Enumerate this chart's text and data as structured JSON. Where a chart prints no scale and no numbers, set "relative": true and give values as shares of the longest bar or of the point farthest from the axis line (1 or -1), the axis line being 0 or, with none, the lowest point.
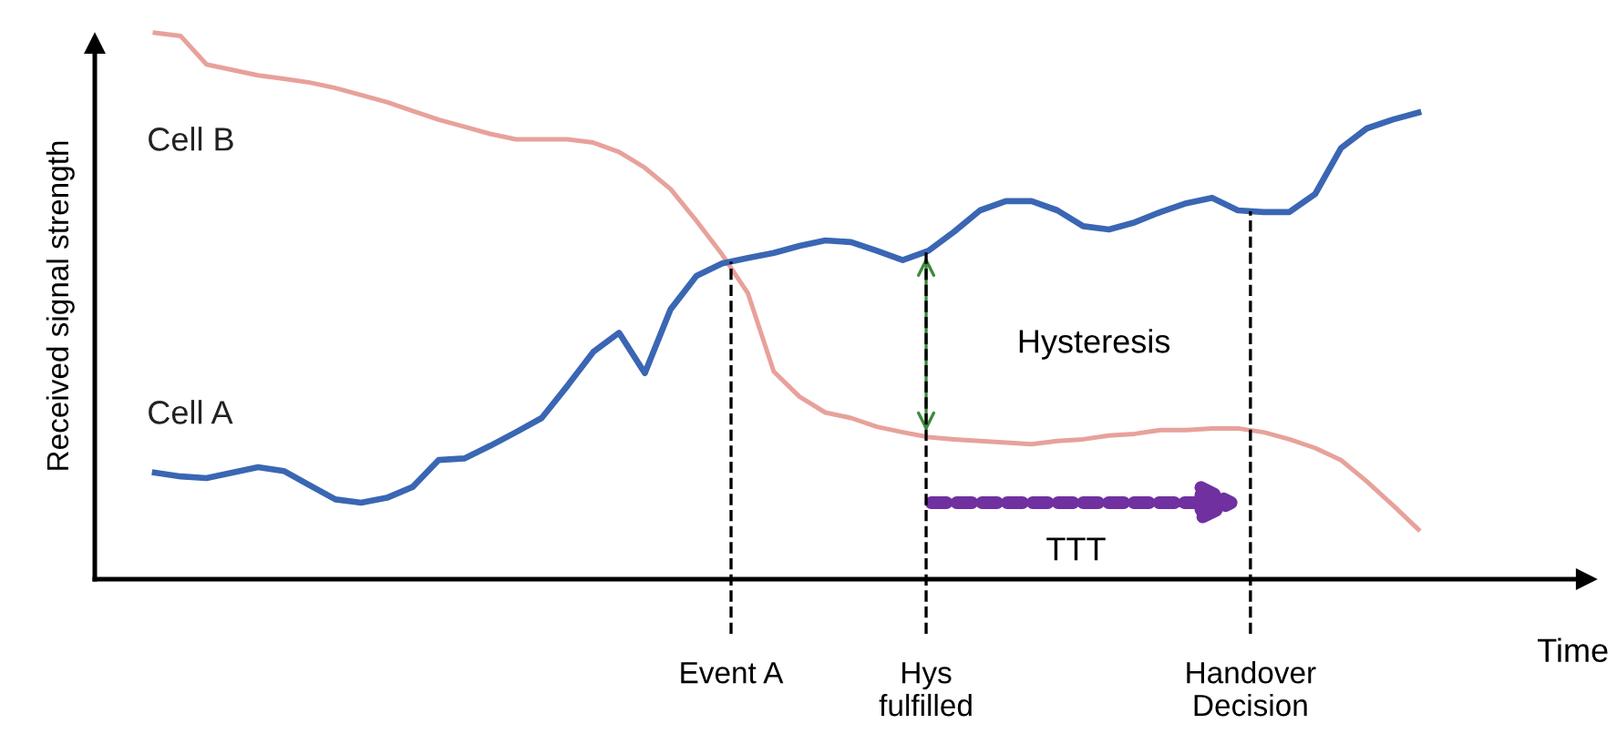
{
  "chart_data": {
    "type": "line",
    "relative": true,
    "ylabel": "Received signal strength",
    "xlabel": "Time",
    "categories": [
      null,
      null,
      null,
      null,
      null,
      null,
      null,
      null,
      null,
      null,
      null,
      null,
      null,
      null,
      null,
      null,
      null,
      null,
      null,
      null,
      null,
      null,
      null,
      null,
      null,
      null,
      null,
      null,
      null,
      null,
      null,
      null,
      null,
      null,
      null,
      null,
      null,
      null,
      null,
      null,
      null,
      null,
      null,
      null,
      null,
      null,
      null,
      null,
      null,
      null
    ],
    "line_style": "solid",
    "series": [
      {
        "name": "Cell B",
        "color": "#e8a19b",
        "values": [
          1.0,
          0.994,
          0.942,
          0.932,
          0.922,
          0.916,
          0.909,
          0.899,
          0.886,
          0.873,
          0.857,
          0.841,
          0.828,
          0.815,
          0.805,
          0.805,
          0.805,
          0.799,
          0.782,
          0.753,
          0.714,
          0.656,
          0.594,
          0.523,
          0.38,
          0.334,
          0.305,
          0.295,
          0.279,
          0.269,
          0.26,
          0.256,
          0.253,
          0.25,
          0.247,
          0.253,
          0.256,
          0.263,
          0.266,
          0.273,
          0.273,
          0.276,
          0.276,
          0.269,
          0.256,
          0.24,
          0.218,
          0.179,
          0.136,
          0.091
        ]
      },
      {
        "name": "Cell A",
        "color": "#3a66b3",
        "values": [
          0.195,
          0.188,
          0.185,
          0.195,
          0.205,
          0.198,
          0.172,
          0.146,
          0.14,
          0.149,
          0.169,
          0.218,
          0.221,
          0.244,
          0.269,
          0.295,
          0.354,
          0.416,
          0.451,
          0.377,
          0.494,
          0.555,
          0.578,
          0.588,
          0.597,
          0.61,
          0.62,
          0.617,
          0.601,
          0.584,
          0.601,
          0.636,
          0.675,
          0.692,
          0.692,
          0.675,
          0.646,
          0.64,
          0.653,
          0.672,
          0.688,
          0.698,
          0.675,
          0.672,
          0.672,
          0.705,
          0.789,
          0.825,
          0.841,
          0.854
        ]
      }
    ],
    "annotations": [
      "Event A",
      "Hys\nfulfilled",
      "Handover\nDecision",
      "Hysteresis",
      "TTT"
    ]
  }
}
